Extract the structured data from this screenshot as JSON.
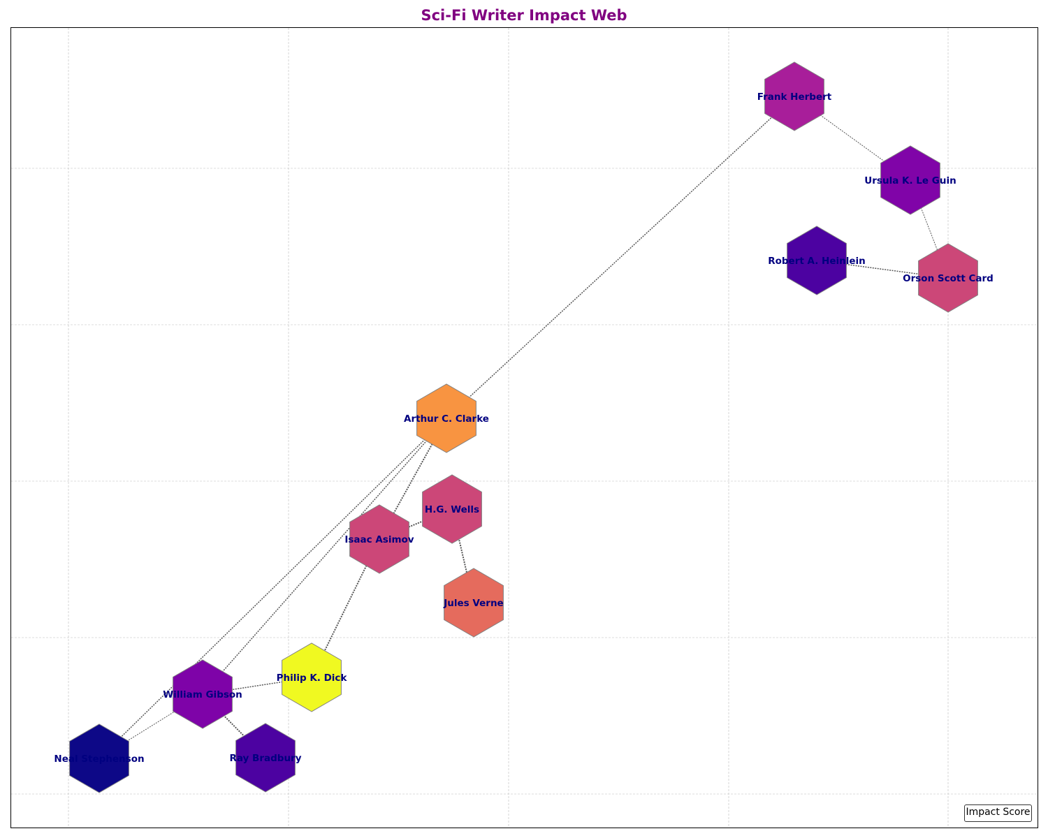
{
  "title": "Sci-Fi Writer Impact Web",
  "legend_label": "Impact Score",
  "colors": {
    "title": "#800080",
    "label": "#000080",
    "edge": "#555555",
    "grid": "#bbbbbb",
    "node_stroke": "#808080"
  },
  "nodes": [
    {
      "id": "frank-herbert",
      "name": "Frank Herbert",
      "color": "#a81e9a"
    },
    {
      "id": "ursula-le-guin",
      "name": "Ursula K. Le Guin",
      "color": "#8004a8"
    },
    {
      "id": "robert-heinlein",
      "name": "Robert A. Heinlein",
      "color": "#4c02a1"
    },
    {
      "id": "orson-scott-card",
      "name": "Orson Scott Card",
      "color": "#cc4778"
    },
    {
      "id": "arthur-clarke",
      "name": "Arthur C. Clarke",
      "color": "#f89441"
    },
    {
      "id": "hg-wells",
      "name": "H.G. Wells",
      "color": "#cc4778"
    },
    {
      "id": "isaac-asimov",
      "name": "Isaac Asimov",
      "color": "#cc4778"
    },
    {
      "id": "jules-verne",
      "name": "Jules Verne",
      "color": "#e56b5d"
    },
    {
      "id": "philip-k-dick",
      "name": "Philip K. Dick",
      "color": "#f0f921"
    },
    {
      "id": "william-gibson",
      "name": "William Gibson",
      "color": "#7e03a8"
    },
    {
      "id": "neal-stephenson",
      "name": "Neal Stephenson",
      "color": "#0d0887"
    },
    {
      "id": "ray-bradbury",
      "name": "Ray Bradbury",
      "color": "#4c02a1"
    }
  ],
  "edges": [
    {
      "source": "frank-herbert",
      "target": "ursula-le-guin",
      "weight": 1
    },
    {
      "source": "ursula-le-guin",
      "target": "orson-scott-card",
      "weight": 1
    },
    {
      "source": "robert-heinlein",
      "target": "orson-scott-card",
      "weight": 2
    },
    {
      "source": "frank-herbert",
      "target": "arthur-clarke",
      "weight": 2
    },
    {
      "source": "arthur-clarke",
      "target": "isaac-asimov",
      "weight": 3
    },
    {
      "source": "arthur-clarke",
      "target": "william-gibson",
      "weight": 2
    },
    {
      "source": "isaac-asimov",
      "target": "hg-wells",
      "weight": 3
    },
    {
      "source": "hg-wells",
      "target": "jules-verne",
      "weight": 3
    },
    {
      "source": "isaac-asimov",
      "target": "philip-k-dick",
      "weight": 3
    },
    {
      "source": "philip-k-dick",
      "target": "william-gibson",
      "weight": 2
    },
    {
      "source": "william-gibson",
      "target": "neal-stephenson",
      "weight": 1
    },
    {
      "source": "william-gibson",
      "target": "ray-bradbury",
      "weight": 3
    },
    {
      "source": "neal-stephenson",
      "target": "arthur-clarke",
      "weight": 2
    }
  ]
}
